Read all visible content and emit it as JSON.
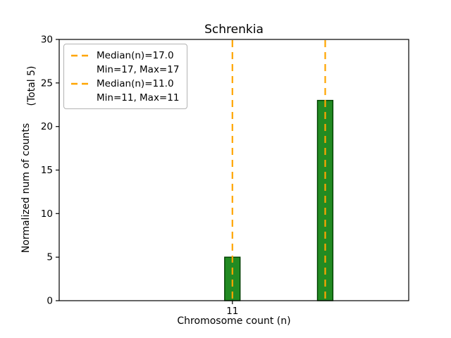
{
  "chart_data": {
    "type": "bar",
    "title": "Schrenkia",
    "xlabel": "Chromosome count (n)",
    "ylabel": "Normalized num of counts",
    "ylabel_secondary": "(Total 5)",
    "xlim": [
      -0.2,
      22.4
    ],
    "ylim": [
      0,
      30
    ],
    "yticks": [
      0,
      5,
      10,
      15,
      20,
      25,
      30
    ],
    "xticks": [
      {
        "value": 11,
        "label": "11"
      }
    ],
    "bar_width": 1.0,
    "bar_color": "#228B22",
    "bar_edge_color": "#004000",
    "bars": [
      {
        "x": 11,
        "height": 5
      },
      {
        "x": 17,
        "height": 23
      }
    ],
    "median_line_color": "#FFA500",
    "median_lines": [
      {
        "x": 17,
        "label": "Median(n)=17.0"
      },
      {
        "x": 11,
        "label": "Median(n)=11.0"
      }
    ],
    "legend_entries": [
      {
        "marker": "dashed-line",
        "label": "Median(n)=17.0"
      },
      {
        "marker": "none",
        "label": "Min=17, Max=17"
      },
      {
        "marker": "dashed-line",
        "label": "Median(n)=11.0"
      },
      {
        "marker": "none",
        "label": "Min=11, Max=11"
      }
    ],
    "grid": false,
    "legend_position": "upper-left"
  }
}
